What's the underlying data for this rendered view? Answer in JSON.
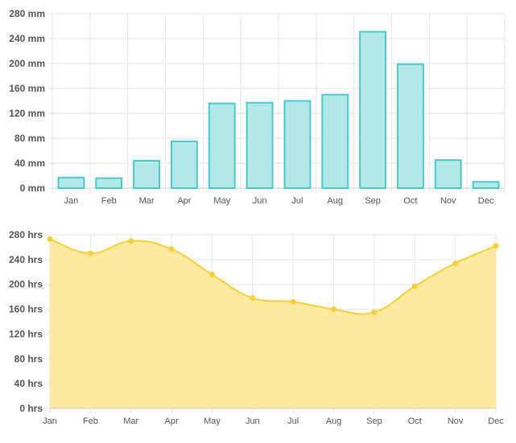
{
  "chart_data": [
    {
      "type": "bar",
      "title": "",
      "xlabel": "",
      "ylabel": "",
      "unit": "mm",
      "categories": [
        "Jan",
        "Feb",
        "Mar",
        "Apr",
        "May",
        "Jun",
        "Jul",
        "Aug",
        "Sep",
        "Oct",
        "Nov",
        "Dec"
      ],
      "values": [
        17,
        16,
        44,
        75,
        136,
        137,
        140,
        150,
        251,
        199,
        45,
        10
      ],
      "ylim": [
        0,
        280
      ],
      "yticks": [
        "0 mm",
        "40 mm",
        "80 mm",
        "120 mm",
        "160 mm",
        "200 mm",
        "240 mm",
        "280 mm"
      ],
      "tick_values": [
        0,
        40,
        80,
        120,
        160,
        200,
        240,
        280
      ],
      "grid": true,
      "colors": {
        "fill": "#b3e8ea",
        "stroke": "#4bc9c9"
      }
    },
    {
      "type": "area",
      "title": "",
      "xlabel": "",
      "ylabel": "",
      "unit": "hrs",
      "categories": [
        "Jan",
        "Feb",
        "Mar",
        "Apr",
        "May",
        "Jun",
        "Jul",
        "Aug",
        "Sep",
        "Oct",
        "Nov",
        "Dec"
      ],
      "values": [
        273,
        250,
        270,
        257,
        216,
        178,
        172,
        160,
        155,
        197,
        234,
        262
      ],
      "ylim": [
        0,
        280
      ],
      "yticks": [
        "0 hrs",
        "40 hrs",
        "80 hrs",
        "120 hrs",
        "160 hrs",
        "200 hrs",
        "240 hrs",
        "280 hrs"
      ],
      "tick_values": [
        0,
        40,
        80,
        120,
        160,
        200,
        240,
        280
      ],
      "grid": true,
      "colors": {
        "fill": "#fde9a0",
        "stroke": "#f7cf3a"
      }
    }
  ]
}
